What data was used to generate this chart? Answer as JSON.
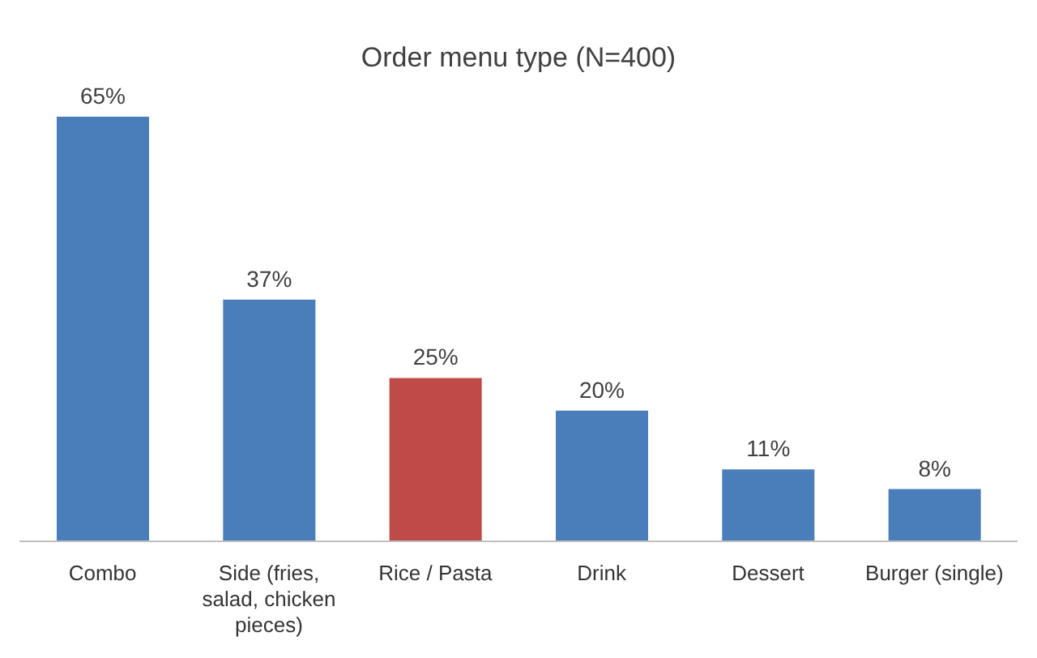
{
  "chart_data": {
    "type": "bar",
    "title": "Order menu type (N=400)",
    "categories": [
      "Combo",
      "Side (fries, salad, chicken pieces)",
      "Rice / Pasta",
      "Drink",
      "Dessert",
      "Burger (single)"
    ],
    "values": [
      65,
      37,
      25,
      20,
      11,
      8
    ],
    "value_labels": [
      "65%",
      "37%",
      "25%",
      "20%",
      "11%",
      "8%"
    ],
    "colors": [
      "#4a7ebb",
      "#4a7ebb",
      "#be4b48",
      "#4a7ebb",
      "#4a7ebb",
      "#4a7ebb"
    ]
  }
}
